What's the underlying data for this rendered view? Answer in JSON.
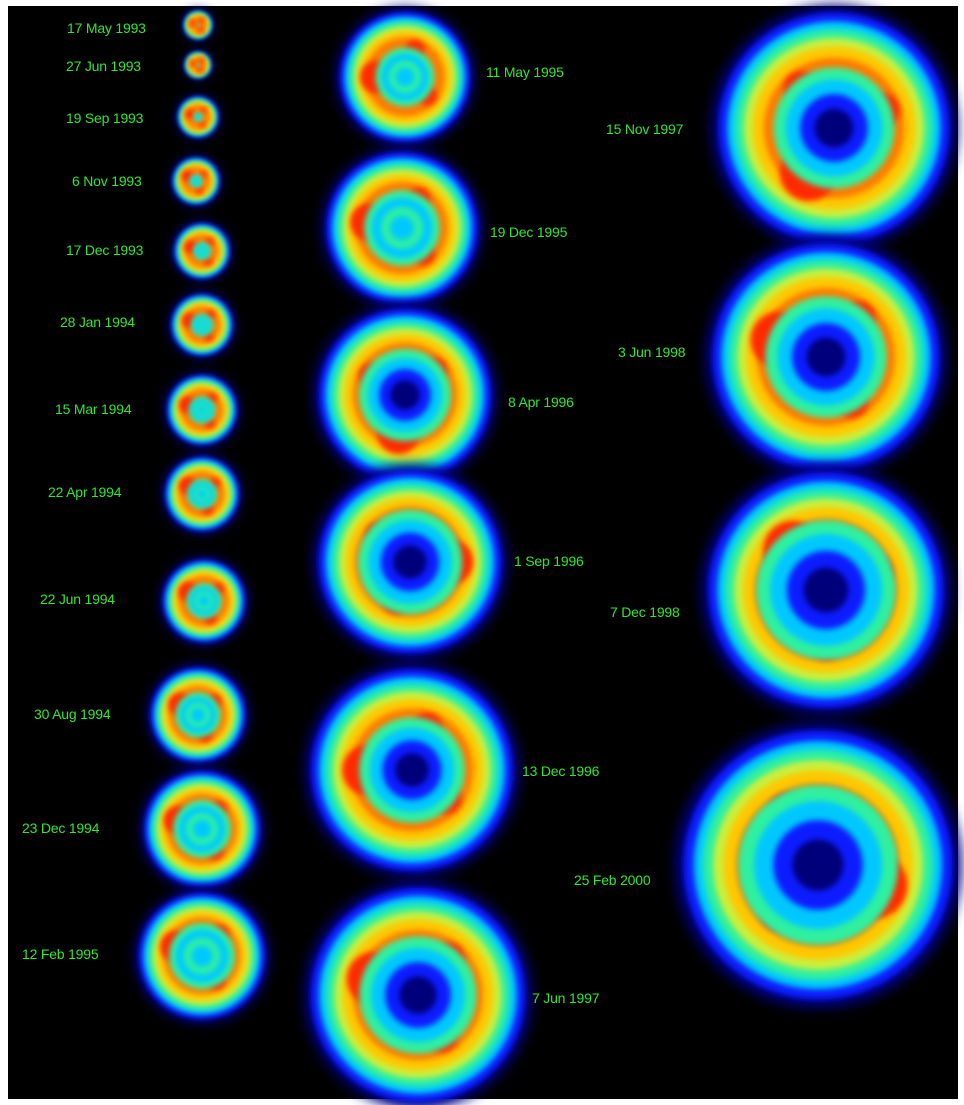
{
  "figure": {
    "background": "#000000",
    "label_color": "#2ee82e",
    "colormap": [
      "#00007a",
      "#0a1fff",
      "#00c8ff",
      "#2ff0a0",
      "#c8f03c",
      "#ffc800",
      "#ff7a00",
      "#ff2a00"
    ],
    "observations": [
      {
        "date": "17 May 1993"
      },
      {
        "date": "27 Jun 1993"
      },
      {
        "date": "19 Sep 1993"
      },
      {
        "date": "6 Nov 1993"
      },
      {
        "date": "17 Dec 1993"
      },
      {
        "date": "28 Jan 1994"
      },
      {
        "date": "15 Mar 1994"
      },
      {
        "date": "22 Apr 1994"
      },
      {
        "date": "22 Jun 1994"
      },
      {
        "date": "30 Aug 1994"
      },
      {
        "date": "23 Dec 1994"
      },
      {
        "date": "12 Feb 1995"
      },
      {
        "date": "11 May 1995"
      },
      {
        "date": "19 Dec 1995"
      },
      {
        "date": "8 Apr 1996"
      },
      {
        "date": "1 Sep 1996"
      },
      {
        "date": "13 Dec 1996"
      },
      {
        "date": "7 Jun 1997"
      },
      {
        "date": "15 Nov 1997"
      },
      {
        "date": "3 Jun 1998"
      },
      {
        "date": "7 Dec 1998"
      },
      {
        "date": "25 Feb 2000"
      }
    ]
  }
}
